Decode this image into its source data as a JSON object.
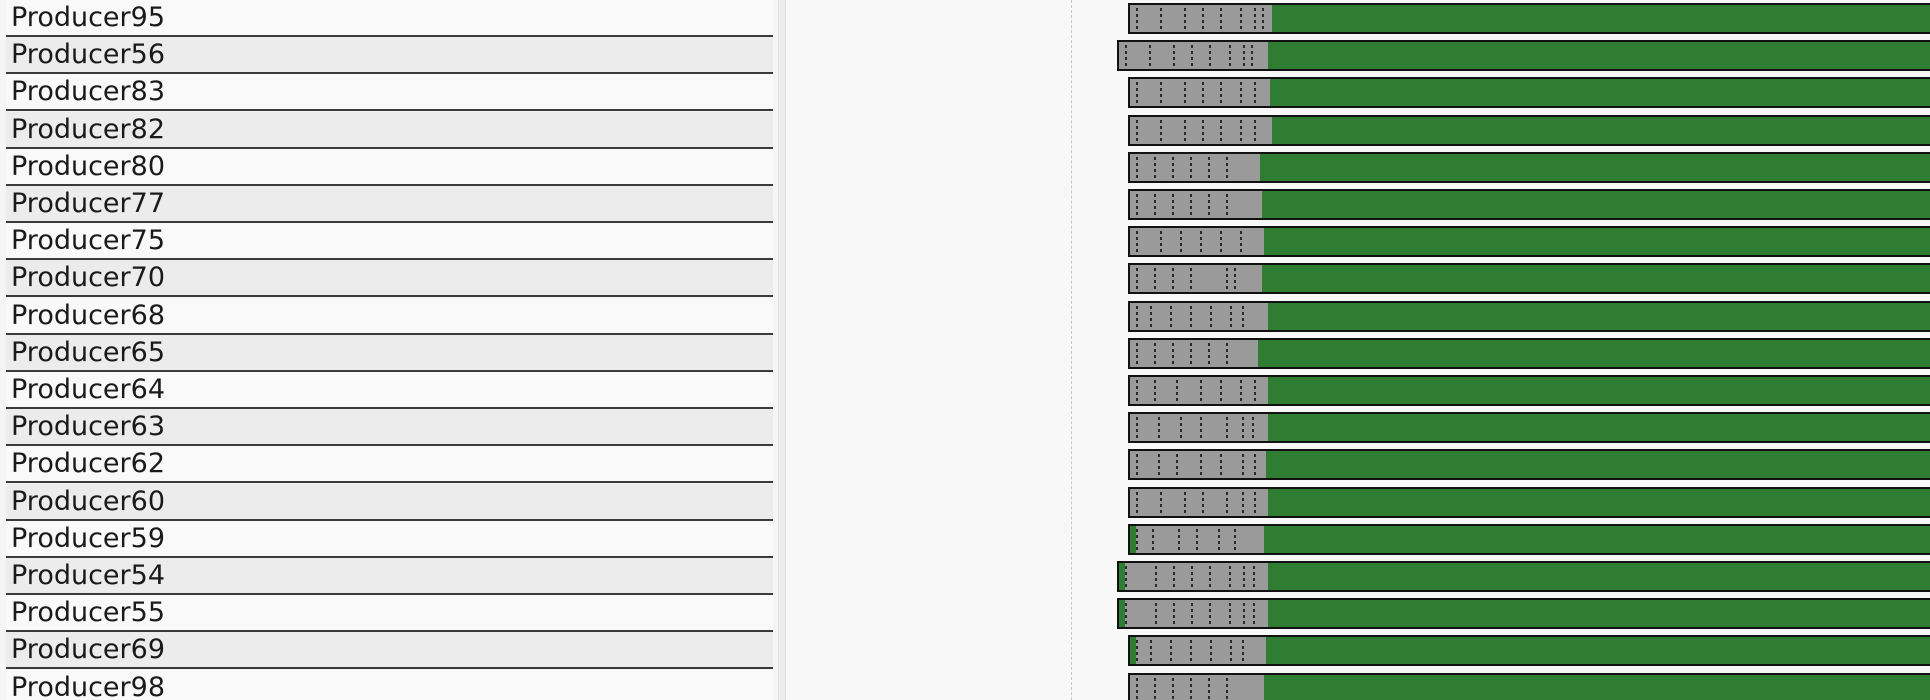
{
  "producers": [
    {
      "label": "Producer95"
    },
    {
      "label": "Producer56"
    },
    {
      "label": "Producer83"
    },
    {
      "label": "Producer82"
    },
    {
      "label": "Producer80"
    },
    {
      "label": "Producer77"
    },
    {
      "label": "Producer75"
    },
    {
      "label": "Producer70"
    },
    {
      "label": "Producer68"
    },
    {
      "label": "Producer65"
    },
    {
      "label": "Producer64"
    },
    {
      "label": "Producer63"
    },
    {
      "label": "Producer62"
    },
    {
      "label": "Producer60"
    },
    {
      "label": "Producer59"
    },
    {
      "label": "Producer54"
    },
    {
      "label": "Producer55"
    },
    {
      "label": "Producer69"
    },
    {
      "label": "Producer98"
    }
  ],
  "colors": {
    "active_segment": "#2f7d32",
    "waiting_segment": "#9a9a9a",
    "border": "#111111",
    "row_alt": "#ececec"
  }
}
